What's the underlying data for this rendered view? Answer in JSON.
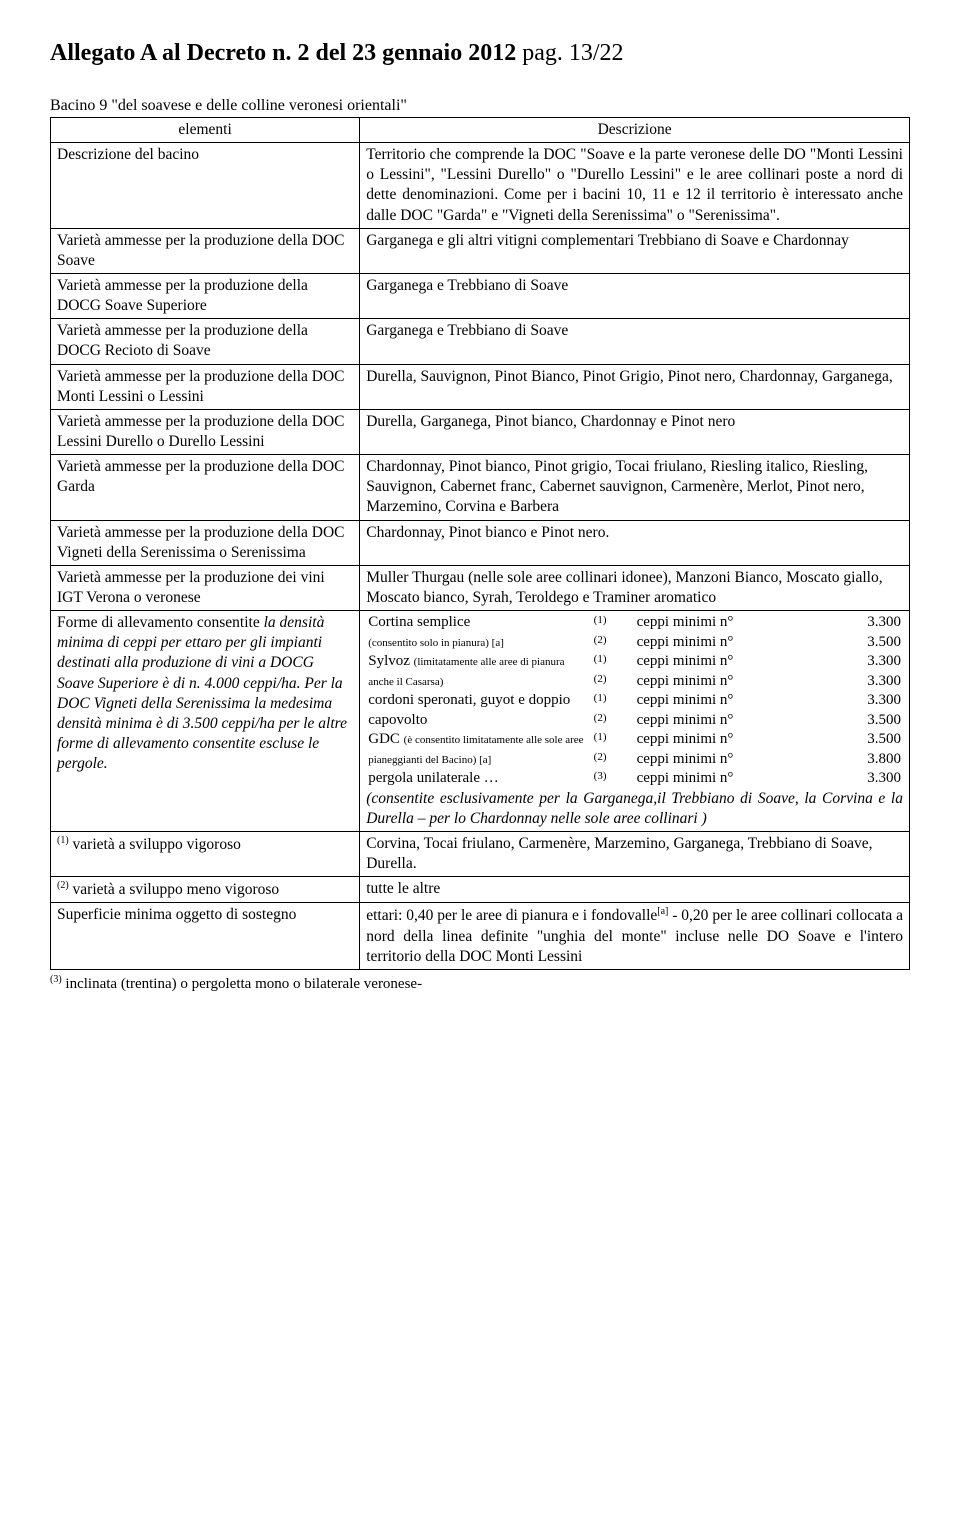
{
  "header": {
    "title_bold": "Allegato A   al Decreto n. 2   del 23 gennaio 2012",
    "title_rest": "  pag. 13/22"
  },
  "subtitle": "Bacino 9 \"del soavese e delle colline veronesi orientali\"",
  "table_header": {
    "left": "elementi",
    "right": "Descrizione"
  },
  "rows": [
    {
      "left": "Descrizione del bacino",
      "right": "Territorio che comprende la DOC \"Soave e la parte veronese delle DO \"Monti Lessini o Lessini\", \"Lessini Durello\" o \"Durello Lessini\" e le aree collinari poste a nord di dette denominazioni. Come per i bacini 10, 11 e 12 il territorio è interessato anche dalle DOC \"Garda\" e \"Vigneti della Serenissima\" o \"Serenissima\"."
    },
    {
      "left": "Varietà ammesse per la produzione della DOC Soave",
      "right": "Garganega e gli altri vitigni complementari Trebbiano di Soave e Chardonnay"
    },
    {
      "left": "Varietà ammesse per la produzione della DOCG Soave Superiore",
      "right": "Garganega e Trebbiano di Soave"
    },
    {
      "left": "Varietà ammesse per la produzione della DOCG Recioto di Soave",
      "right": "Garganega e Trebbiano di Soave"
    },
    {
      "left": "Varietà ammesse per la produzione della DOC Monti Lessini o Lessini",
      "right": "Durella, Sauvignon, Pinot Bianco, Pinot Grigio, Pinot nero, Chardonnay, Garganega,"
    },
    {
      "left": "Varietà ammesse per la produzione della DOC Lessini Durello o Durello Lessini",
      "right": "Durella, Garganega, Pinot bianco, Chardonnay e Pinot nero"
    },
    {
      "left": "Varietà ammesse per la produzione della DOC Garda",
      "right": "Chardonnay, Pinot bianco, Pinot grigio, Tocai friulano, Riesling italico, Riesling, Sauvignon, Cabernet franc, Cabernet sauvignon, Carmenère, Merlot, Pinot nero, Marzemino, Corvina e Barbera"
    },
    {
      "left": "Varietà ammesse per la produzione della DOC Vigneti della Serenissima o Serenissima",
      "right": "Chardonnay, Pinot bianco e Pinot nero."
    },
    {
      "left": "Varietà ammesse per la produzione dei vini IGT Verona o veronese",
      "right": "Muller Thurgau (nelle sole aree collinari idonee), Manzoni Bianco, Moscato giallo, Moscato bianco, Syrah, Teroldego e Traminer aromatico"
    }
  ],
  "forme_left_main": "Forme di allevamento consentite ",
  "forme_left_italic": "la densità minima di ceppi per ettaro per gli impianti destinati alla produzione di vini a DOCG Soave Superiore è di n. 4.000 ceppi/ha. Per la DOC Vigneti della Serenissima la medesima densità minima è di 3.500 ceppi/ha per le altre forme di allevamento consentite escluse le pergole.",
  "training_rows": [
    {
      "name": "Cortina semplice",
      "note": "(consentito solo in pianura) [a]",
      "sup1": "(1)",
      "sup2": "(2)",
      "label": "ceppi minimi n°",
      "v1": "3.300",
      "v2": "3.500"
    },
    {
      "name": "Sylvoz",
      "note": "(limitatamente alle aree di pianura anche il Casarsa)",
      "sup1": "(1)",
      "sup2": "(2)",
      "label": "ceppi minimi n°",
      "v1": "3.300",
      "v2": "3.300"
    },
    {
      "name": "cordoni speronati, guyot e doppio capovolto",
      "note": "",
      "sup1": "(1)",
      "sup2": "(2)",
      "label": "ceppi minimi n°",
      "v1": "3.300",
      "v2": "3.500"
    },
    {
      "name": "GDC",
      "note": "(è consentito limitatamente alle sole aree pianeggianti del Bacino) [a]",
      "sup1": "(1)",
      "sup2": "(2)",
      "label": "ceppi minimi n°",
      "v1": "3.500",
      "v2": "3.800"
    },
    {
      "name": "pergola unilaterale …",
      "note": "",
      "sup1": "(3)",
      "sup2": "",
      "label": "ceppi minimi n°",
      "v1": "3.300",
      "v2": ""
    }
  ],
  "training_footer_italic": "(consentite esclusivamente per la Garganega,il Trebbiano di Soave, la Corvina e la Durella – per lo Chardonnay nelle sole aree collinari )",
  "var1_left_sup": "(1)",
  "var1_left": " varietà a sviluppo vigoroso",
  "var1_right": "Corvina, Tocai friulano, Carmenère, Marzemino, Garganega, Trebbiano di Soave, Durella.",
  "var2_left_sup": "(2)",
  "var2_left": " varietà a sviluppo meno vigoroso",
  "var2_right": "tutte le altre",
  "sup_left": "Superficie minima oggetto di sostegno",
  "sup_right_a": "ettari: 0,40 per le aree di pianura e i fondovalle",
  "sup_right_sup": "[a]",
  "sup_right_b": "  - 0,20 per le aree collinari collocata a nord della linea definite \"unghia del monte\" incluse nelle DO Soave e l'intero territorio della DOC Monti Lessini",
  "footnote_sup": "(3)",
  "footnote": " inclinata (trentina) o pergoletta mono o bilaterale veronese-"
}
